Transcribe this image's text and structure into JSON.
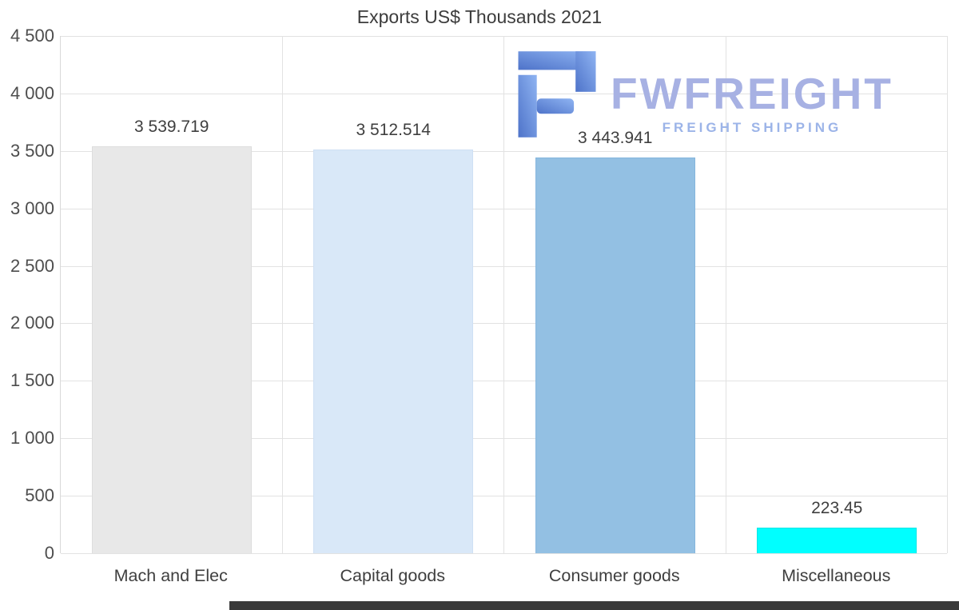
{
  "chart_data": {
    "type": "bar",
    "title": "Exports US$ Thousands 2021",
    "categories": [
      "Mach and Elec",
      "Capital goods",
      "Consumer goods",
      "Miscellaneous"
    ],
    "values": [
      3539.719,
      3512.514,
      3443.941,
      223.45
    ],
    "value_labels": [
      "3 539.719",
      "3 512.514",
      "3 443.941",
      "223.45"
    ],
    "bar_colors": [
      "#e8e8e8",
      "#d9e8f8",
      "#93c0e3",
      "#00ffff"
    ],
    "bar_border_colors": [
      "#dddddd",
      "#cfe0f4",
      "#86b6dd",
      "#00e6e6"
    ],
    "xlabel": "",
    "ylabel": "",
    "ylim": [
      0,
      4500
    ],
    "ytick_step": 500,
    "ytick_labels": [
      "0",
      "500",
      "1 000",
      "1 500",
      "2 000",
      "2 500",
      "3 000",
      "3 500",
      "4 000",
      "4 500"
    ],
    "grid": true,
    "legend": false
  },
  "logo": {
    "name": "FWFREIGHT",
    "subtitle": "FREIGHT SHIPPING",
    "text_color": "#a7b1e3",
    "subtitle_color": "#9cb4e8",
    "icon_color_dark": "#4e73c9",
    "icon_color_light": "#8fb4f2"
  }
}
